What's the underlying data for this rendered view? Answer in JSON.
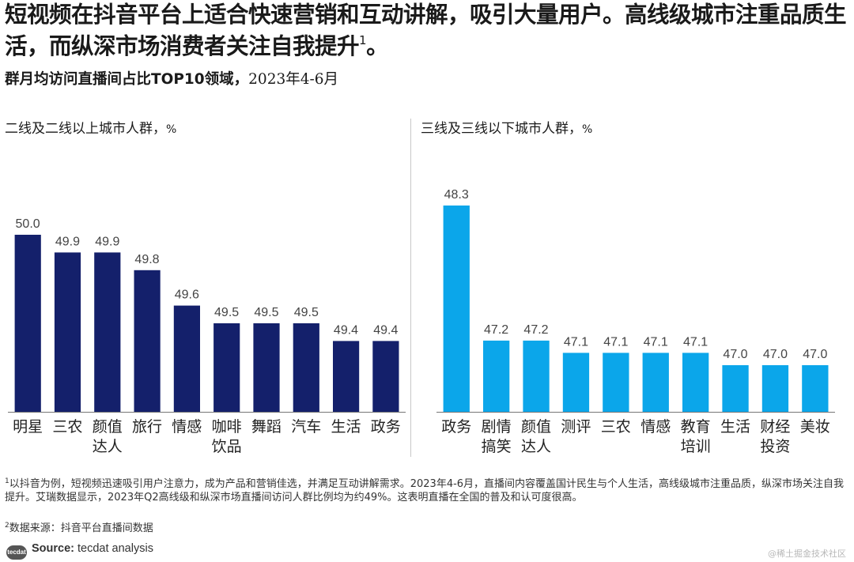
{
  "headline": {
    "text": "短视频在抖音平台上适合快速营销和互动讲解，吸引大量用户。高线级城市注重品质生活，而纵深市场消费者关注自我提升",
    "footnote_marker": "1",
    "end": "。"
  },
  "subhead": {
    "bold": "群月均访问直播间占比TOP10领域，",
    "date": "2023年4-6月"
  },
  "panels": {
    "left": {
      "title": "二线及二线以上城市人群，",
      "unit": "%"
    },
    "right": {
      "title": "三线及三线以下城市人群，",
      "unit": "%"
    }
  },
  "colors": {
    "left_bar": "#14206b",
    "right_bar": "#0ba6ea",
    "label": "#444444",
    "axis": "#777777"
  },
  "chart_data": [
    {
      "type": "bar",
      "title": "二线及二线以上城市人群，%",
      "categories": [
        [
          "明星"
        ],
        [
          "三农"
        ],
        [
          "颜值",
          "达人"
        ],
        [
          "旅行"
        ],
        [
          "情感"
        ],
        [
          "咖啡",
          "饮品"
        ],
        [
          "舞蹈"
        ],
        [
          "汽车"
        ],
        [
          "生活"
        ],
        [
          "政务"
        ]
      ],
      "values": [
        50.0,
        49.9,
        49.9,
        49.8,
        49.6,
        49.5,
        49.5,
        49.5,
        49.4,
        49.4
      ],
      "labels": [
        "50.0",
        "49.9",
        "49.9",
        "49.8",
        "49.6",
        "49.5",
        "49.5",
        "49.5",
        "49.4",
        "49.4"
      ],
      "xlabel": "",
      "ylabel": "%"
    },
    {
      "type": "bar",
      "title": "三线及三线以下城市人群，%",
      "categories": [
        [
          "政务"
        ],
        [
          "剧情",
          "搞笑"
        ],
        [
          "颜值",
          "达人"
        ],
        [
          "测评"
        ],
        [
          "三农"
        ],
        [
          "情感"
        ],
        [
          "教育",
          "培训"
        ],
        [
          "生活"
        ],
        [
          "财经",
          "投资"
        ],
        [
          "美妆"
        ]
      ],
      "values": [
        48.3,
        47.2,
        47.2,
        47.1,
        47.1,
        47.1,
        47.1,
        47.0,
        47.0,
        47.0
      ],
      "labels": [
        "48.3",
        "47.2",
        "47.2",
        "47.1",
        "47.1",
        "47.1",
        "47.1",
        "47.0",
        "47.0",
        "47.0"
      ],
      "xlabel": "",
      "ylabel": "%"
    }
  ],
  "footnotes": [
    {
      "marker": "1",
      "text": "以抖音为例，短视频迅速吸引用户注意力，成为产品和营销佳选，并满足互动讲解需求。2023年4-6月，直播间内容覆盖国计民生与个人生活，高线级城市注重品质，纵深市场关注自我提升。艾瑞数据显示，2023年Q2高线级和纵深市场直播间访问人群比例均为约49%。这表明直播在全国的普及和认可度很高。"
    },
    {
      "marker": "2",
      "text": "数据来源：抖音平台直播间数据"
    }
  ],
  "source": {
    "logo": "tecdat",
    "label": "Source:",
    "text": " tecdat analysis"
  },
  "watermark": "@稀土掘金技术社区"
}
